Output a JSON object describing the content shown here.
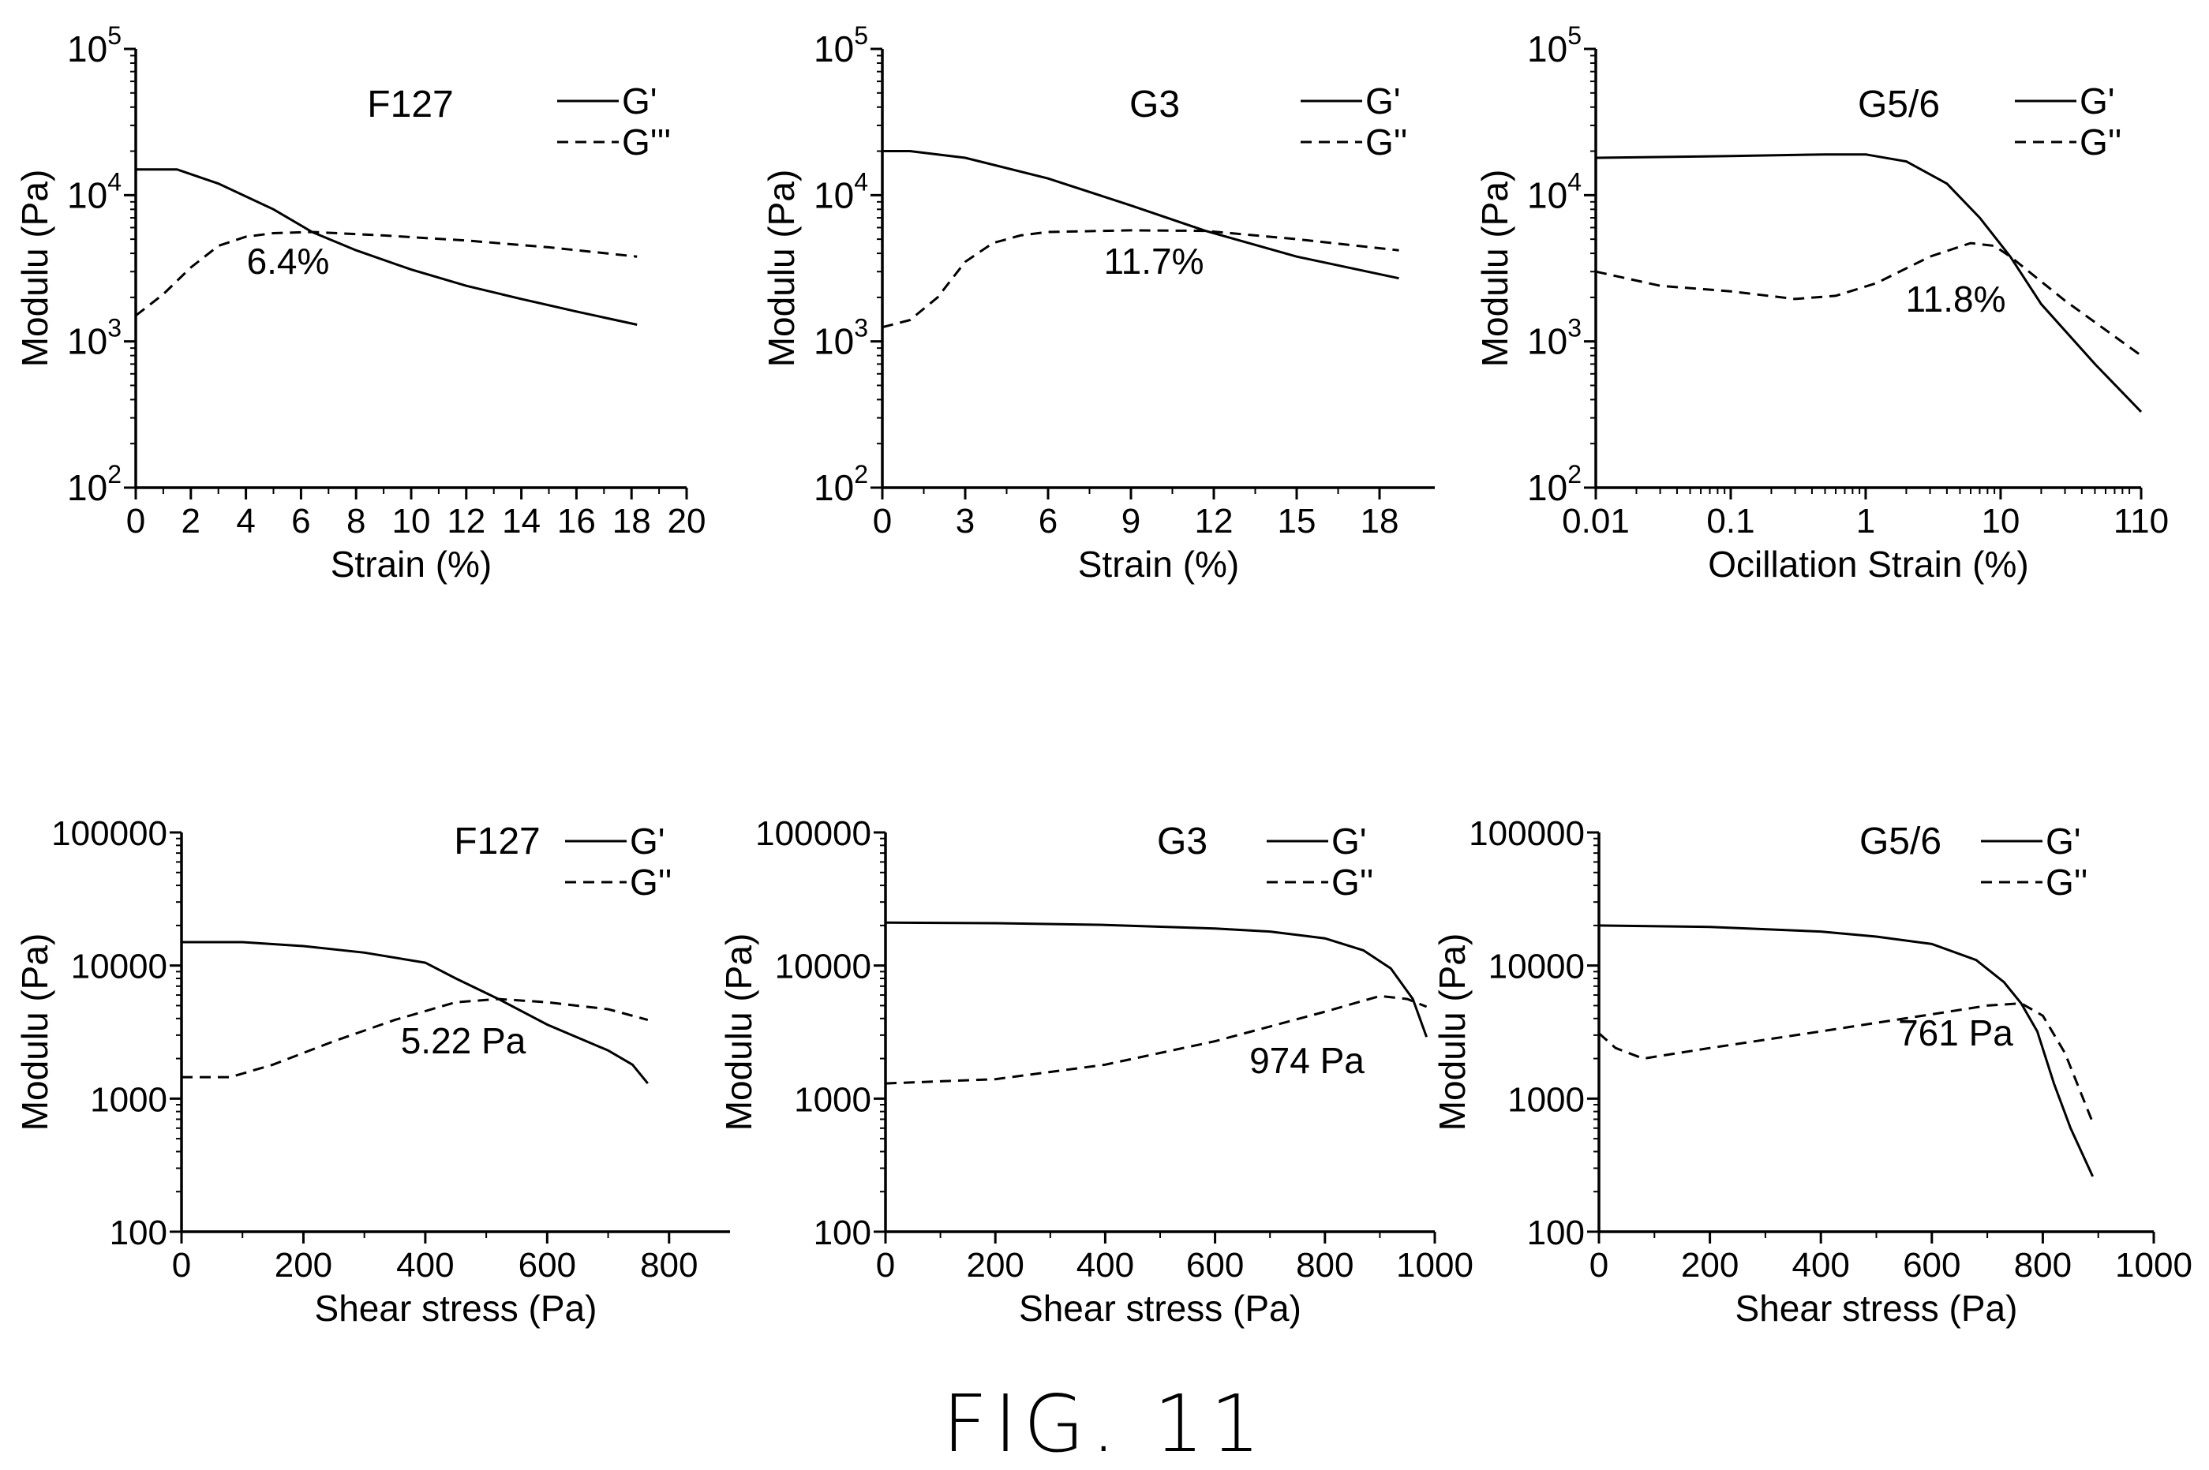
{
  "figure": {
    "caption": "FIG. 11"
  },
  "chart_data": [
    {
      "type": "line",
      "label": "F127",
      "annotation": "6.4%",
      "xlabel": "Strain (%)",
      "ylabel": "Modulu (Pa)",
      "xscale": "linear",
      "yscale": "log",
      "xlim": [
        0,
        20
      ],
      "ylim": [
        100,
        100000
      ],
      "xticks": [
        0,
        2,
        4,
        6,
        8,
        10,
        12,
        14,
        16,
        18,
        20
      ],
      "xtick_labels": [
        "0",
        "2",
        "4",
        "6",
        "8",
        "10",
        "12",
        "14",
        "16",
        "18",
        "20"
      ],
      "yticks": [
        100,
        1000,
        10000,
        100000
      ],
      "ytick_labels": [
        {
          "base": "10",
          "exp": "2"
        },
        {
          "base": "10",
          "exp": "3"
        },
        {
          "base": "10",
          "exp": "4"
        },
        {
          "base": "10",
          "exp": "5"
        }
      ],
      "legend_position": "top-right",
      "series": [
        {
          "name": "G'",
          "style": "solid",
          "points": [
            [
              0,
              15000
            ],
            [
              1.5,
              15000
            ],
            [
              3,
              12000
            ],
            [
              5,
              8000
            ],
            [
              6.4,
              5600
            ],
            [
              8,
              4200
            ],
            [
              10,
              3100
            ],
            [
              12,
              2400
            ],
            [
              14,
              1950
            ],
            [
              16,
              1600
            ],
            [
              18.2,
              1300
            ]
          ]
        },
        {
          "name": "G'''",
          "style": "dashed",
          "points": [
            [
              0,
              1500
            ],
            [
              1,
              2100
            ],
            [
              2,
              3200
            ],
            [
              3,
              4500
            ],
            [
              4,
              5200
            ],
            [
              5,
              5500
            ],
            [
              6.4,
              5600
            ],
            [
              9,
              5300
            ],
            [
              12,
              4900
            ],
            [
              15,
              4400
            ],
            [
              18.2,
              3800
            ]
          ]
        }
      ]
    },
    {
      "type": "line",
      "label": "G3",
      "annotation": "11.7%",
      "xlabel": "Strain (%)",
      "ylabel": "Modulu (Pa)",
      "xscale": "linear",
      "yscale": "log",
      "xlim": [
        0,
        20
      ],
      "ylim": [
        100,
        100000
      ],
      "xticks": [
        0,
        3,
        6,
        9,
        12,
        15,
        18
      ],
      "xtick_labels": [
        "0",
        "3",
        "6",
        "9",
        "12",
        "15",
        "18"
      ],
      "yticks": [
        100,
        1000,
        10000,
        100000
      ],
      "ytick_labels": [
        {
          "base": "10",
          "exp": "2"
        },
        {
          "base": "10",
          "exp": "3"
        },
        {
          "base": "10",
          "exp": "4"
        },
        {
          "base": "10",
          "exp": "5"
        }
      ],
      "legend_position": "top-right",
      "series": [
        {
          "name": "G'",
          "style": "solid",
          "points": [
            [
              0,
              20000
            ],
            [
              1,
              20000
            ],
            [
              3,
              18000
            ],
            [
              6,
              13000
            ],
            [
              9,
              8500
            ],
            [
              11.7,
              5700
            ],
            [
              15,
              3800
            ],
            [
              18.7,
              2700
            ]
          ]
        },
        {
          "name": "G''",
          "style": "dashed",
          "points": [
            [
              0,
              1250
            ],
            [
              1,
              1400
            ],
            [
              2,
              2000
            ],
            [
              3,
              3500
            ],
            [
              4,
              4700
            ],
            [
              5,
              5300
            ],
            [
              6,
              5600
            ],
            [
              9,
              5750
            ],
            [
              11.7,
              5700
            ],
            [
              15,
              5000
            ],
            [
              18.7,
              4200
            ]
          ]
        }
      ]
    },
    {
      "type": "line",
      "label": "G5/6",
      "annotation": "11.8%",
      "xlabel": "Ocillation Strain (%)",
      "ylabel": "Modulu (Pa)",
      "xscale": "log",
      "yscale": "log",
      "xlim": [
        0.01,
        110
      ],
      "ylim": [
        100,
        100000
      ],
      "xticks": [
        0.01,
        0.1,
        1,
        10,
        110
      ],
      "xtick_labels": [
        "0.01",
        "0.1",
        "1",
        "10",
        "110"
      ],
      "yticks": [
        100,
        1000,
        10000,
        100000
      ],
      "ytick_labels": [
        {
          "base": "10",
          "exp": "2"
        },
        {
          "base": "10",
          "exp": "3"
        },
        {
          "base": "10",
          "exp": "4"
        },
        {
          "base": "10",
          "exp": "5"
        }
      ],
      "legend_position": "top-right",
      "series": [
        {
          "name": "G'",
          "style": "solid",
          "points": [
            [
              0.01,
              18000
            ],
            [
              0.1,
              18500
            ],
            [
              0.5,
              19000
            ],
            [
              1,
              19000
            ],
            [
              2,
              17000
            ],
            [
              4,
              12000
            ],
            [
              7,
              7000
            ],
            [
              11.8,
              3800
            ],
            [
              20,
              1800
            ],
            [
              50,
              700
            ],
            [
              110,
              330
            ]
          ]
        },
        {
          "name": "G''",
          "style": "dashed",
          "points": [
            [
              0.01,
              3000
            ],
            [
              0.03,
              2400
            ],
            [
              0.1,
              2200
            ],
            [
              0.3,
              1950
            ],
            [
              0.6,
              2050
            ],
            [
              1.2,
              2500
            ],
            [
              3,
              3800
            ],
            [
              6,
              4700
            ],
            [
              9,
              4500
            ],
            [
              11.8,
              3800
            ],
            [
              30,
              1900
            ],
            [
              110,
              800
            ]
          ]
        }
      ]
    },
    {
      "type": "line",
      "label": "F127",
      "annotation": "5.22 Pa",
      "xlabel": "Shear stress (Pa)",
      "ylabel": "Modulu (Pa)",
      "xscale": "linear",
      "yscale": "log",
      "xlim": [
        0,
        900
      ],
      "ylim": [
        100,
        100000
      ],
      "xticks": [
        0,
        200,
        400,
        600,
        800
      ],
      "xtick_labels": [
        "0",
        "200",
        "400",
        "600",
        "800"
      ],
      "yticks": [
        100,
        1000,
        10000,
        100000
      ],
      "ytick_labels": [
        "100",
        "1000",
        "10000",
        "100000"
      ],
      "legend_position": "top-right",
      "series": [
        {
          "name": "G'",
          "style": "solid",
          "points": [
            [
              0,
              15000
            ],
            [
              100,
              15000
            ],
            [
              200,
              14000
            ],
            [
              300,
              12500
            ],
            [
              400,
              10500
            ],
            [
              450,
              8000
            ],
            [
              520,
              5600
            ],
            [
              600,
              3600
            ],
            [
              700,
              2300
            ],
            [
              740,
              1800
            ],
            [
              765,
              1300
            ]
          ]
        },
        {
          "name": "G''",
          "style": "dashed",
          "points": [
            [
              0,
              1450
            ],
            [
              80,
              1450
            ],
            [
              150,
              1800
            ],
            [
              250,
              2700
            ],
            [
              350,
              3900
            ],
            [
              450,
              5300
            ],
            [
              520,
              5600
            ],
            [
              600,
              5300
            ],
            [
              700,
              4700
            ],
            [
              765,
              3900
            ]
          ]
        }
      ]
    },
    {
      "type": "line",
      "label": "G3",
      "annotation": "974 Pa",
      "xlabel": "Shear stress (Pa)",
      "ylabel": "Modulu (Pa)",
      "xscale": "linear",
      "yscale": "log",
      "xlim": [
        0,
        1000
      ],
      "ylim": [
        100,
        100000
      ],
      "xticks": [
        0,
        200,
        400,
        600,
        800,
        1000
      ],
      "xtick_labels": [
        "0",
        "200",
        "400",
        "600",
        "800",
        "1000"
      ],
      "yticks": [
        100,
        1000,
        10000,
        100000
      ],
      "ytick_labels": [
        "100",
        "1000",
        "10000",
        "100000"
      ],
      "legend_position": "top-right",
      "series": [
        {
          "name": "G'",
          "style": "solid",
          "points": [
            [
              0,
              21000
            ],
            [
              200,
              20800
            ],
            [
              400,
              20200
            ],
            [
              600,
              19000
            ],
            [
              700,
              18000
            ],
            [
              800,
              16000
            ],
            [
              870,
              13000
            ],
            [
              920,
              9500
            ],
            [
              960,
              5600
            ],
            [
              985,
              2900
            ]
          ]
        },
        {
          "name": "G''",
          "style": "dashed",
          "points": [
            [
              0,
              1300
            ],
            [
              200,
              1400
            ],
            [
              400,
              1800
            ],
            [
              600,
              2700
            ],
            [
              800,
              4500
            ],
            [
              900,
              5900
            ],
            [
              950,
              5600
            ],
            [
              985,
              4900
            ]
          ]
        }
      ]
    },
    {
      "type": "line",
      "label": "G5/6",
      "annotation": "761 Pa",
      "xlabel": "Shear stress (Pa)",
      "ylabel": "Modulu (Pa)",
      "xscale": "linear",
      "yscale": "log",
      "xlim": [
        0,
        1000
      ],
      "ylim": [
        100,
        100000
      ],
      "xticks": [
        0,
        200,
        400,
        600,
        800,
        1000
      ],
      "xtick_labels": [
        "0",
        "200",
        "400",
        "600",
        "800",
        "1000"
      ],
      "yticks": [
        100,
        1000,
        10000,
        100000
      ],
      "ytick_labels": [
        "100",
        "1000",
        "10000",
        "100000"
      ],
      "legend_position": "top-right",
      "series": [
        {
          "name": "G'",
          "style": "solid",
          "points": [
            [
              0,
              20000
            ],
            [
              200,
              19500
            ],
            [
              400,
              18000
            ],
            [
              500,
              16500
            ],
            [
              600,
              14500
            ],
            [
              680,
              11000
            ],
            [
              730,
              7500
            ],
            [
              761,
              5200
            ],
            [
              790,
              3200
            ],
            [
              820,
              1300
            ],
            [
              850,
              600
            ],
            [
              890,
              260
            ]
          ]
        },
        {
          "name": "G''",
          "style": "dashed",
          "points": [
            [
              0,
              3100
            ],
            [
              30,
              2400
            ],
            [
              80,
              2000
            ],
            [
              200,
              2400
            ],
            [
              400,
              3200
            ],
            [
              600,
              4300
            ],
            [
              700,
              5000
            ],
            [
              761,
              5200
            ],
            [
              800,
              4200
            ],
            [
              840,
              2200
            ],
            [
              890,
              660
            ]
          ]
        }
      ]
    }
  ]
}
